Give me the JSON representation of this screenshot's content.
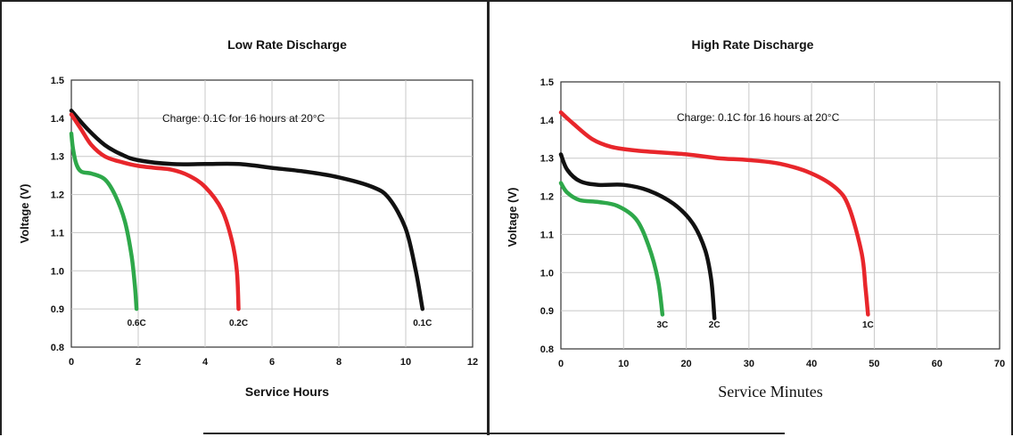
{
  "chart_data": [
    {
      "type": "line",
      "title": "Low Rate Discharge",
      "xlabel": "Service Hours",
      "ylabel": "Voltage (V)",
      "xlim": [
        0,
        12
      ],
      "ylim": [
        0.8,
        1.5
      ],
      "xticks": [
        "0",
        "2",
        "4",
        "6",
        "8",
        "10",
        "12"
      ],
      "yticks": [
        "0.8",
        "0.9",
        "1.0",
        "1.1",
        "1.2",
        "1.3",
        "1.4",
        "1.5"
      ],
      "grid": true,
      "annotation": "Charge: 0.1C for 16 hours at 20°C",
      "series": [
        {
          "name": "0.1C",
          "color": "#111111",
          "points": [
            [
              0,
              1.42
            ],
            [
              0.5,
              1.37
            ],
            [
              1,
              1.33
            ],
            [
              1.5,
              1.305
            ],
            [
              2,
              1.29
            ],
            [
              3,
              1.28
            ],
            [
              4,
              1.28
            ],
            [
              5,
              1.28
            ],
            [
              6,
              1.27
            ],
            [
              7,
              1.26
            ],
            [
              8,
              1.245
            ],
            [
              9,
              1.22
            ],
            [
              9.5,
              1.19
            ],
            [
              10,
              1.11
            ],
            [
              10.3,
              1.0
            ],
            [
              10.5,
              0.9
            ]
          ]
        },
        {
          "name": "0.2C",
          "color": "#e8262b",
          "points": [
            [
              0,
              1.41
            ],
            [
              0.3,
              1.37
            ],
            [
              0.6,
              1.33
            ],
            [
              1,
              1.3
            ],
            [
              1.5,
              1.285
            ],
            [
              2,
              1.275
            ],
            [
              2.5,
              1.27
            ],
            [
              3,
              1.265
            ],
            [
              3.5,
              1.25
            ],
            [
              4,
              1.22
            ],
            [
              4.5,
              1.16
            ],
            [
              4.8,
              1.08
            ],
            [
              4.95,
              1.0
            ],
            [
              5.0,
              0.9
            ]
          ]
        },
        {
          "name": "0.6C",
          "color": "#2ea84a",
          "points": [
            [
              0,
              1.36
            ],
            [
              0.05,
              1.32
            ],
            [
              0.15,
              1.28
            ],
            [
              0.3,
              1.26
            ],
            [
              0.6,
              1.255
            ],
            [
              1,
              1.24
            ],
            [
              1.3,
              1.2
            ],
            [
              1.6,
              1.13
            ],
            [
              1.8,
              1.04
            ],
            [
              1.9,
              0.96
            ],
            [
              1.95,
              0.9
            ]
          ]
        }
      ]
    },
    {
      "type": "line",
      "title": "High Rate Discharge",
      "xlabel": "Service Minutes",
      "ylabel": "Voltage (V)",
      "xlim": [
        0,
        70
      ],
      "ylim": [
        0.8,
        1.5
      ],
      "xticks": [
        "0",
        "10",
        "20",
        "30",
        "40",
        "50",
        "60",
        "70"
      ],
      "yticks": [
        "0.8",
        "0.9",
        "1.0",
        "1.1",
        "1.2",
        "1.3",
        "1.4",
        "1.5"
      ],
      "grid": true,
      "annotation": "Charge: 0.1C for 16 hours at 20°C",
      "series": [
        {
          "name": "1C",
          "color": "#e8262b",
          "points": [
            [
              0,
              1.42
            ],
            [
              2,
              1.39
            ],
            [
              5,
              1.35
            ],
            [
              8,
              1.33
            ],
            [
              12,
              1.32
            ],
            [
              20,
              1.31
            ],
            [
              25,
              1.3
            ],
            [
              30,
              1.295
            ],
            [
              35,
              1.285
            ],
            [
              40,
              1.26
            ],
            [
              44,
              1.22
            ],
            [
              46,
              1.17
            ],
            [
              48,
              1.05
            ],
            [
              48.6,
              0.96
            ],
            [
              49,
              0.89
            ]
          ]
        },
        {
          "name": "2C",
          "color": "#111111",
          "points": [
            [
              0,
              1.31
            ],
            [
              1,
              1.27
            ],
            [
              3,
              1.24
            ],
            [
              6,
              1.23
            ],
            [
              10,
              1.23
            ],
            [
              14,
              1.215
            ],
            [
              18,
              1.18
            ],
            [
              21,
              1.13
            ],
            [
              23,
              1.06
            ],
            [
              24,
              0.98
            ],
            [
              24.5,
              0.88
            ]
          ]
        },
        {
          "name": "3C",
          "color": "#2ea84a",
          "points": [
            [
              0,
              1.235
            ],
            [
              1,
              1.21
            ],
            [
              3,
              1.19
            ],
            [
              6,
              1.185
            ],
            [
              9,
              1.175
            ],
            [
              12,
              1.14
            ],
            [
              14,
              1.07
            ],
            [
              15.5,
              0.98
            ],
            [
              16.2,
              0.89
            ]
          ]
        }
      ]
    }
  ]
}
